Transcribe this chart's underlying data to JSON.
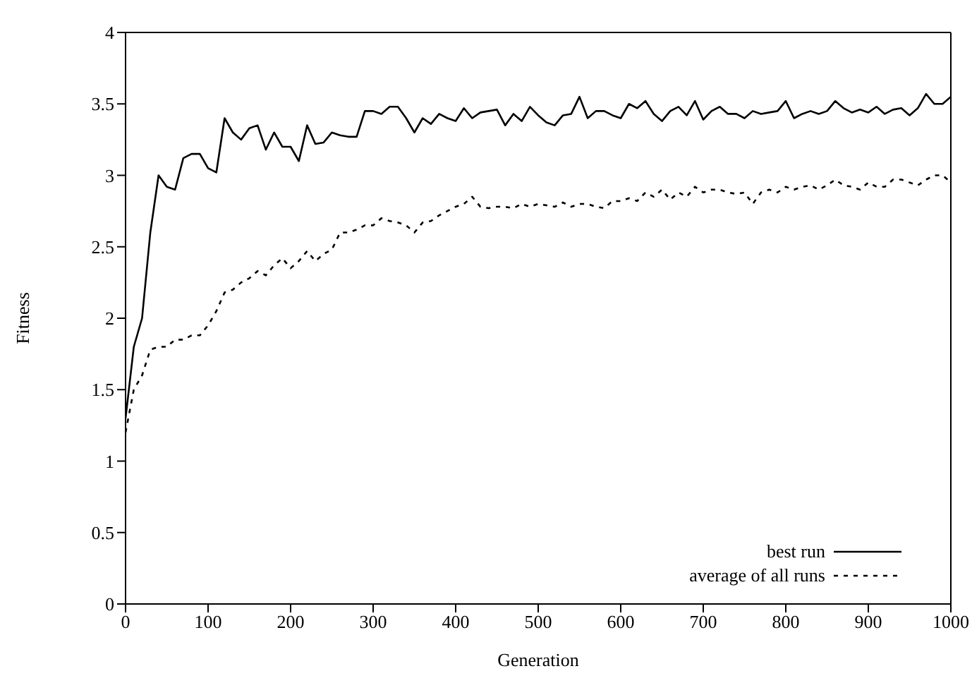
{
  "chart_data": {
    "type": "line",
    "xlabel": "Generation",
    "ylabel": "Fitness",
    "x": [
      0,
      10,
      20,
      30,
      40,
      50,
      60,
      70,
      80,
      90,
      100,
      110,
      120,
      130,
      140,
      150,
      160,
      170,
      180,
      190,
      200,
      210,
      220,
      230,
      240,
      250,
      260,
      270,
      280,
      290,
      300,
      310,
      320,
      330,
      340,
      350,
      360,
      370,
      380,
      390,
      400,
      410,
      420,
      430,
      440,
      450,
      460,
      470,
      480,
      490,
      500,
      510,
      520,
      530,
      540,
      550,
      560,
      570,
      580,
      590,
      600,
      610,
      620,
      630,
      640,
      650,
      660,
      670,
      680,
      690,
      700,
      710,
      720,
      730,
      740,
      750,
      760,
      770,
      780,
      790,
      800,
      810,
      820,
      830,
      840,
      850,
      860,
      870,
      880,
      890,
      900,
      910,
      920,
      930,
      940,
      950,
      960,
      970,
      980,
      990,
      1000
    ],
    "xlim": [
      0,
      1000
    ],
    "xticks": [
      0,
      100,
      200,
      300,
      400,
      500,
      600,
      700,
      800,
      900,
      1000
    ],
    "ylim": [
      0,
      4
    ],
    "yticks": [
      0,
      0.5,
      1,
      1.5,
      2,
      2.5,
      3,
      3.5,
      4
    ],
    "grid": false,
    "legend": "bottom right",
    "marker": "none",
    "series": [
      {
        "name": "best run",
        "color": "#000000",
        "line_style": "solid",
        "values": [
          1.3,
          1.8,
          2.0,
          2.6,
          3.0,
          2.92,
          2.9,
          3.12,
          3.15,
          3.15,
          3.05,
          3.02,
          3.4,
          3.3,
          3.25,
          3.33,
          3.35,
          3.18,
          3.3,
          3.2,
          3.2,
          3.1,
          3.35,
          3.22,
          3.23,
          3.3,
          3.28,
          3.27,
          3.27,
          3.45,
          3.45,
          3.43,
          3.48,
          3.48,
          3.4,
          3.3,
          3.4,
          3.36,
          3.43,
          3.4,
          3.38,
          3.47,
          3.4,
          3.44,
          3.45,
          3.46,
          3.35,
          3.43,
          3.38,
          3.48,
          3.42,
          3.37,
          3.35,
          3.42,
          3.43,
          3.55,
          3.4,
          3.45,
          3.45,
          3.42,
          3.4,
          3.5,
          3.47,
          3.52,
          3.43,
          3.38,
          3.45,
          3.48,
          3.42,
          3.52,
          3.39,
          3.45,
          3.48,
          3.43,
          3.43,
          3.4,
          3.45,
          3.43,
          3.44,
          3.45,
          3.52,
          3.4,
          3.43,
          3.45,
          3.43,
          3.45,
          3.52,
          3.47,
          3.44,
          3.46,
          3.44,
          3.48,
          3.43,
          3.46,
          3.47,
          3.42,
          3.47,
          3.57,
          3.5,
          3.5,
          3.55
        ]
      },
      {
        "name": "average of all runs",
        "color": "#000000",
        "line_style": "dotted",
        "values": [
          1.2,
          1.5,
          1.6,
          1.78,
          1.8,
          1.8,
          1.85,
          1.85,
          1.88,
          1.88,
          1.95,
          2.05,
          2.18,
          2.2,
          2.25,
          2.28,
          2.33,
          2.3,
          2.37,
          2.42,
          2.35,
          2.4,
          2.47,
          2.4,
          2.45,
          2.48,
          2.6,
          2.6,
          2.62,
          2.65,
          2.65,
          2.7,
          2.68,
          2.67,
          2.65,
          2.6,
          2.67,
          2.68,
          2.72,
          2.75,
          2.78,
          2.8,
          2.85,
          2.78,
          2.77,
          2.78,
          2.78,
          2.77,
          2.8,
          2.78,
          2.8,
          2.79,
          2.78,
          2.81,
          2.78,
          2.8,
          2.8,
          2.78,
          2.77,
          2.82,
          2.82,
          2.84,
          2.82,
          2.88,
          2.85,
          2.9,
          2.83,
          2.88,
          2.85,
          2.92,
          2.88,
          2.9,
          2.9,
          2.88,
          2.87,
          2.88,
          2.8,
          2.88,
          2.9,
          2.88,
          2.92,
          2.9,
          2.92,
          2.93,
          2.9,
          2.93,
          2.97,
          2.93,
          2.92,
          2.9,
          2.95,
          2.92,
          2.92,
          2.97,
          2.97,
          2.95,
          2.93,
          2.97,
          3.0,
          3.0,
          2.95
        ]
      }
    ]
  }
}
